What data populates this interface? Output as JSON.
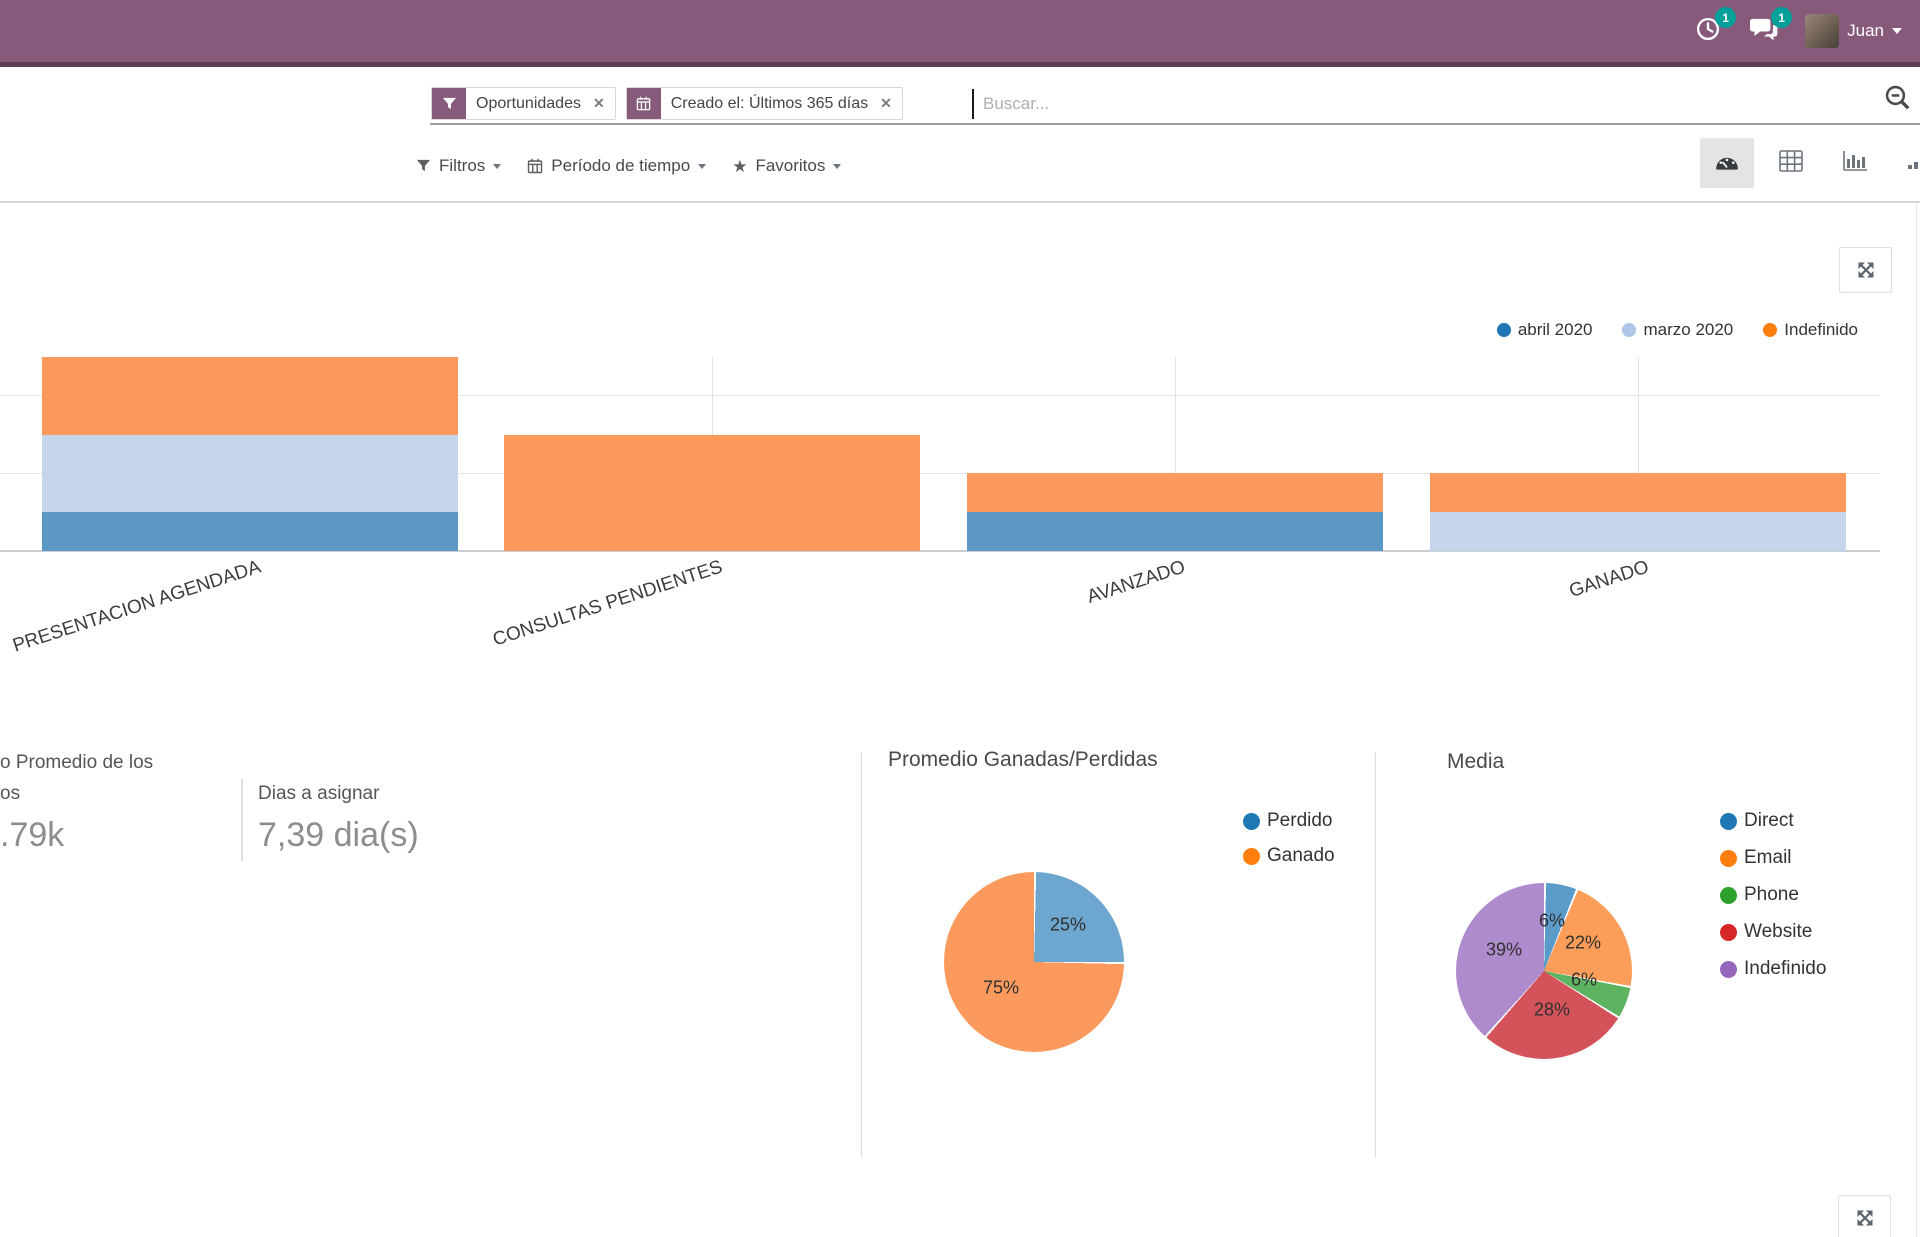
{
  "topbar": {
    "user_name": "Juan",
    "activity_badge": "1",
    "message_badge": "1"
  },
  "search": {
    "facets": [
      {
        "icon": "filter-icon",
        "label": "Oportunidades",
        "remove_glyph": "✕"
      },
      {
        "icon": "calendar-icon",
        "label": "Creado el: Últimos 365 días",
        "remove_glyph": "✕"
      }
    ],
    "placeholder": "Buscar..."
  },
  "filter_bar": {
    "filters_label": "Filtros",
    "period_label": "Período de tiempo",
    "favorites_label": "Favoritos",
    "star_glyph": "★"
  },
  "view_switcher": {
    "active_view": "dashboard",
    "views": [
      "dashboard",
      "list",
      "graph",
      "cohort"
    ]
  },
  "kpis": {
    "kpi1_title_line1": "o Promedio de los",
    "kpi1_title_line2": "os",
    "kpi1_value": ".79k",
    "kpi2_title": "Dias a asignar",
    "kpi2_value": "7,39 dia(s)"
  },
  "colors": {
    "topbar_bg": "#875A7B",
    "badge": "#00A09A",
    "accent": "#875A7B"
  },
  "chart_data": [
    {
      "type": "bar",
      "stacked": true,
      "title": "",
      "categories": [
        "PRESENTACION AGENDADA",
        "CONSULTAS PENDIENTES",
        "AVANZADO",
        "GANADO"
      ],
      "series": [
        {
          "name": "abril 2020",
          "color_legend": "#1f77b4",
          "color_fill": "#5b98c6",
          "values": [
            1,
            0,
            1,
            0
          ]
        },
        {
          "name": "marzo 2020",
          "color_legend": "#aec7e8",
          "color_fill": "#c5d6ec",
          "values": [
            2,
            0,
            0,
            1
          ]
        },
        {
          "name": "Indefinido",
          "color_legend": "#ff7f0e",
          "color_fill": "#fb9a5c",
          "values": [
            2,
            3,
            1,
            1
          ]
        }
      ],
      "ylim": [
        0,
        5
      ],
      "grid": true,
      "legend_position": "top-right",
      "xlabel": "",
      "ylabel": ""
    },
    {
      "type": "pie",
      "title": "Promedio Ganadas/Perdidas",
      "legend_position": "right",
      "slices": [
        {
          "label": "Perdido",
          "value": 25,
          "color_legend": "#1f77b4",
          "color_fill": "#6da6ce"
        },
        {
          "label": "Ganado",
          "value": 75,
          "color_legend": "#ff7f0e",
          "color_fill": "#fb9a5c"
        }
      ]
    },
    {
      "type": "pie",
      "title": "Media",
      "legend_position": "right",
      "slices": [
        {
          "label": "Direct",
          "value": 6,
          "color_legend": "#1f77b4",
          "color_fill": "#5b9bc9"
        },
        {
          "label": "Email",
          "value": 22,
          "color_legend": "#ff7f0e",
          "color_fill": "#fc9e5a"
        },
        {
          "label": "Phone",
          "value": 6,
          "color_legend": "#2ca02c",
          "color_fill": "#5eb360"
        },
        {
          "label": "Website",
          "value": 28,
          "color_legend": "#d62728",
          "color_fill": "#d4535b"
        },
        {
          "label": "Indefinido",
          "value": 39,
          "color_legend": "#9467bd",
          "color_fill": "#ae8bcd"
        }
      ]
    }
  ]
}
